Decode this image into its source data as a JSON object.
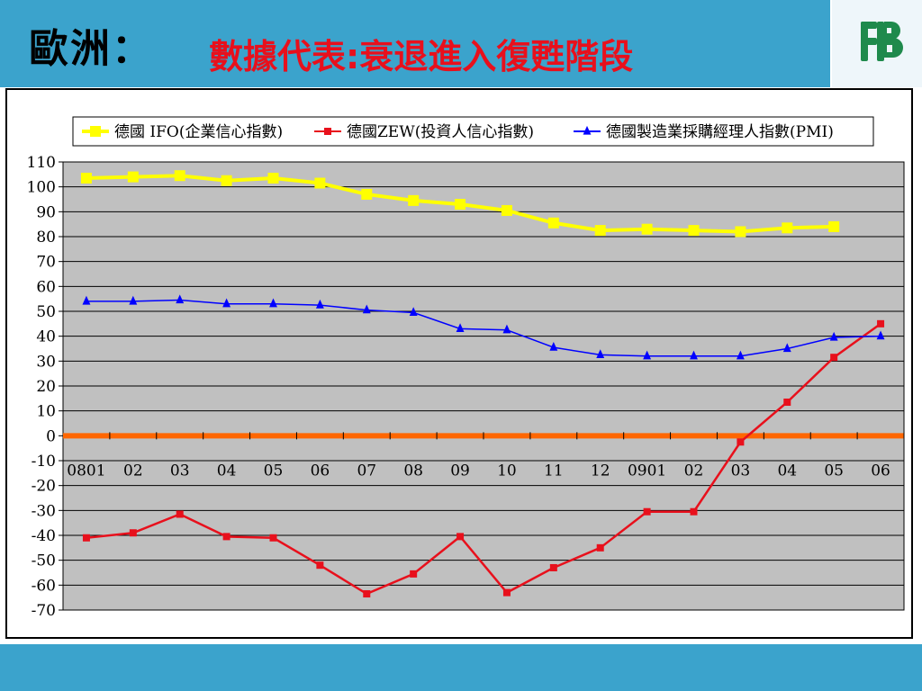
{
  "header": {
    "title": "歐洲：",
    "subtitle": "數據代表:衰退進入復甦階段",
    "background_color": "#3ba3cc",
    "subtitle_color": "#e8101c"
  },
  "logo": {
    "icon": "company-logo-icon",
    "color": "#1f8a4c"
  },
  "chart_data": {
    "type": "line",
    "categories": [
      "0801",
      "02",
      "03",
      "04",
      "05",
      "06",
      "07",
      "08",
      "09",
      "10",
      "11",
      "12",
      "0901",
      "02",
      "03",
      "04",
      "05",
      "06"
    ],
    "y_ticks": [
      110,
      100,
      90,
      80,
      70,
      60,
      50,
      40,
      30,
      20,
      10,
      0,
      -10,
      -20,
      -30,
      -40,
      -50,
      -60,
      -70
    ],
    "ylim": [
      -70,
      110
    ],
    "grid": true,
    "legend_position": "top",
    "plot_background": "#c0c0c0",
    "zero_line_color": "#ff6600",
    "series": [
      {
        "name": "德國 IFO(企業信心指數)",
        "color": "#ffff00",
        "marker": "square",
        "values": [
          103.5,
          104,
          104.5,
          102.5,
          103.5,
          101.5,
          97,
          94.5,
          93,
          90.5,
          85.5,
          82.5,
          83,
          82.5,
          82,
          83.5,
          84,
          null
        ]
      },
      {
        "name": "德國ZEW(投資人信心指數)",
        "color": "#e8101c",
        "marker": "square",
        "values": [
          -41,
          -39,
          -31.5,
          -40.5,
          -41,
          -52,
          -63.5,
          -55.5,
          -40.5,
          -63,
          -53,
          -45,
          -30.5,
          -30.5,
          -2.5,
          13.5,
          31.5,
          45
        ]
      },
      {
        "name": "德國製造業採購經理人指數(PMI)",
        "color": "#0000ff",
        "marker": "triangle",
        "values": [
          54,
          54,
          54.5,
          53,
          53,
          52.5,
          50.5,
          49.5,
          43,
          42.5,
          35.5,
          32.5,
          32,
          32,
          32,
          35,
          39.5,
          40
        ]
      }
    ]
  }
}
